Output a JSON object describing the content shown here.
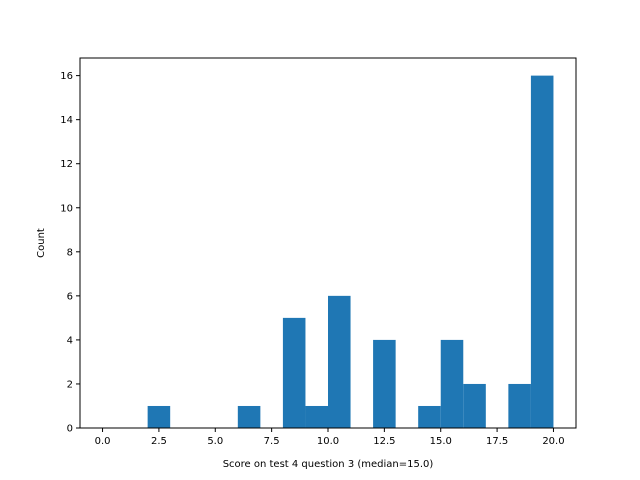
{
  "chart_data": {
    "type": "bar",
    "title": "",
    "xlabel": "Score on test 4 question 3 (median=15.0)",
    "ylabel": "Count",
    "xlim": [
      -1.0,
      21.0
    ],
    "ylim": [
      0,
      16.8
    ],
    "grid": false,
    "bin_edges": [
      0,
      1,
      2,
      3,
      4,
      5,
      6,
      7,
      8,
      9,
      10,
      11,
      12,
      13,
      14,
      15,
      16,
      17,
      18,
      19,
      20
    ],
    "values": [
      0,
      0,
      1,
      0,
      0,
      0,
      1,
      0,
      5,
      1,
      6,
      0,
      4,
      0,
      1,
      4,
      2,
      0,
      2,
      16
    ],
    "bar_color": "#1f77b4",
    "x_ticks": [
      0.0,
      2.5,
      5.0,
      7.5,
      10.0,
      12.5,
      15.0,
      17.5,
      20.0
    ],
    "x_tick_labels": [
      "0.0",
      "2.5",
      "5.0",
      "7.5",
      "10.0",
      "12.5",
      "15.0",
      "17.5",
      "20.0"
    ],
    "y_ticks": [
      0,
      2,
      4,
      6,
      8,
      10,
      12,
      14,
      16
    ],
    "y_tick_labels": [
      "0",
      "2",
      "4",
      "6",
      "8",
      "10",
      "12",
      "14",
      "16"
    ]
  }
}
